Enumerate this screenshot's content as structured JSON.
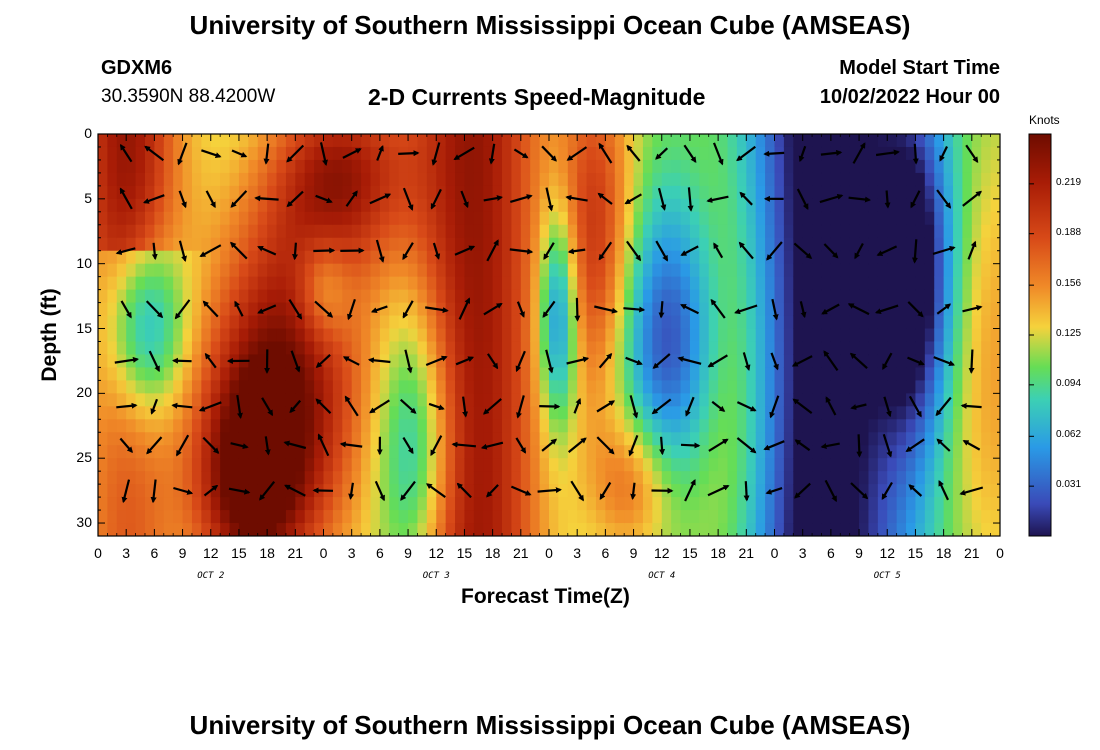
{
  "header": {
    "title": "University of Southern Mississippi Ocean Cube (AMSEAS)",
    "station": "GDXM6",
    "coords": "30.3590N  88.4200W",
    "chart_title": "2-D Currents Speed-Magnitude",
    "model_start_label": "Model Start Time",
    "model_start_value": "10/02/2022 Hour 00"
  },
  "footer": {
    "title": "University of Southern Mississippi Ocean Cube (AMSEAS)"
  },
  "chart_data": {
    "type": "heatmap",
    "title": "2-D Currents Speed-Magnitude",
    "xlabel": "Forecast Time(Z)",
    "ylabel": "Depth (ft)",
    "ylim": [
      31,
      0
    ],
    "y_ticks": [
      "0",
      "5",
      "10",
      "15",
      "20",
      "25",
      "30"
    ],
    "x_ticks": [
      "0",
      "3",
      "6",
      "9",
      "12",
      "15",
      "18",
      "21",
      "0",
      "3",
      "6",
      "9",
      "12",
      "15",
      "18",
      "21",
      "0",
      "3",
      "6",
      "9",
      "12",
      "15",
      "18",
      "21",
      "0",
      "3",
      "6",
      "9",
      "12",
      "15",
      "18",
      "21",
      "0"
    ],
    "date_labels": [
      "OCT 2",
      "OCT 3",
      "OCT 4",
      "OCT 5"
    ],
    "colorbar": {
      "label": "Knots",
      "ticks": [
        "0.219",
        "0.188",
        "0.156",
        "0.125",
        "0.094",
        "0.062",
        "0.031"
      ],
      "min": 0.0,
      "max": 0.25
    },
    "colors": {
      "very_high": "#8c1400",
      "high": "#c83a10",
      "mid_high": "#f08a28",
      "mid": "#f5d23c",
      "mid_low": "#50dc78",
      "low": "#2a9ae6",
      "very_low": "#3a4ab8",
      "min": "#1e1450"
    }
  }
}
